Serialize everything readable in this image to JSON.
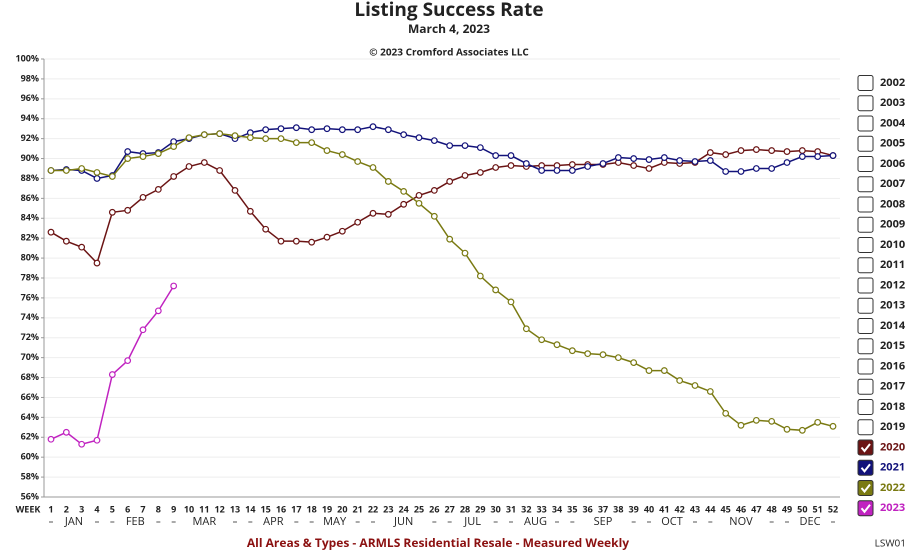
{
  "chart_data": {
    "type": "line",
    "title": "Listing Success Rate",
    "subtitle": "March 4, 2023",
    "copyright": "© 2023 Cromford Associates LLC",
    "footer": "All Areas & Types - ARMLS Residential Resale - Measured Weekly",
    "chart_code": "LSW01",
    "x_label": "WEEK",
    "categories": [
      1,
      2,
      3,
      4,
      5,
      6,
      7,
      8,
      9,
      10,
      11,
      12,
      13,
      14,
      15,
      16,
      17,
      18,
      19,
      20,
      21,
      22,
      23,
      24,
      25,
      26,
      27,
      28,
      29,
      30,
      31,
      32,
      33,
      34,
      35,
      36,
      37,
      38,
      39,
      40,
      41,
      42,
      43,
      44,
      45,
      46,
      47,
      48,
      49,
      50,
      51,
      52
    ],
    "months": [
      "JAN",
      "FEB",
      "MAR",
      "APR",
      "MAY",
      "JUN",
      "JUL",
      "AUG",
      "SEP",
      "OCT",
      "NOV",
      "DEC"
    ],
    "ylim": [
      56,
      100
    ],
    "yticks": [
      {
        "value": 56,
        "label": "56%"
      },
      {
        "value": 58,
        "label": "58%"
      },
      {
        "value": 60,
        "label": "60%"
      },
      {
        "value": 62,
        "label": "62%"
      },
      {
        "value": 64,
        "label": "64%"
      },
      {
        "value": 66,
        "label": "66%"
      },
      {
        "value": 68,
        "label": "68%"
      },
      {
        "value": 70,
        "label": "70%"
      },
      {
        "value": 72,
        "label": "72%"
      },
      {
        "value": 74,
        "label": "74%"
      },
      {
        "value": 76,
        "label": "76%"
      },
      {
        "value": 78,
        "label": "78%"
      },
      {
        "value": 80,
        "label": "80%"
      },
      {
        "value": 82,
        "label": "82%"
      },
      {
        "value": 84,
        "label": "84%"
      },
      {
        "value": 86,
        "label": "86%"
      },
      {
        "value": 88,
        "label": "88%"
      },
      {
        "value": 90,
        "label": "90%"
      },
      {
        "value": 92,
        "label": "92%"
      },
      {
        "value": 94,
        "label": "94%"
      },
      {
        "value": 96,
        "label": "96%"
      },
      {
        "value": 98,
        "label": "98%"
      },
      {
        "value": 100,
        "label": "100%"
      }
    ],
    "grid": true,
    "legend_inactive": [
      "2002",
      "2003",
      "2004",
      "2005",
      "2006",
      "2007",
      "2008",
      "2009",
      "2010",
      "2011",
      "2012",
      "2013",
      "2014",
      "2015",
      "2016",
      "2017",
      "2018",
      "2019"
    ],
    "series": [
      {
        "name": "2020",
        "color": "#6b1414",
        "values": [
          82.6,
          81.7,
          81.1,
          79.5,
          84.6,
          84.8,
          86.1,
          86.9,
          88.2,
          89.2,
          89.6,
          88.8,
          86.8,
          84.7,
          82.9,
          81.7,
          81.7,
          81.6,
          82.1,
          82.7,
          83.6,
          84.5,
          84.4,
          85.4,
          86.3,
          86.8,
          87.7,
          88.3,
          88.6,
          89.1,
          89.3,
          89.2,
          89.3,
          89.3,
          89.4,
          89.4,
          89.4,
          89.6,
          89.3,
          89.0,
          89.6,
          89.5,
          89.6,
          90.6,
          90.4,
          90.8,
          90.9,
          90.8,
          90.7,
          90.8,
          90.7,
          90.3
        ]
      },
      {
        "name": "2021",
        "color": "#12127a",
        "values": [
          88.8,
          88.9,
          88.8,
          88.0,
          88.3,
          90.7,
          90.5,
          90.6,
          91.7,
          92.0,
          92.4,
          92.5,
          92.0,
          92.6,
          92.9,
          93.0,
          93.1,
          92.9,
          93.0,
          92.9,
          92.9,
          93.2,
          92.9,
          92.4,
          92.1,
          91.8,
          91.3,
          91.3,
          91.1,
          90.3,
          90.3,
          89.5,
          88.8,
          88.8,
          88.8,
          89.2,
          89.5,
          90.1,
          90.0,
          89.9,
          90.1,
          89.8,
          89.7,
          89.8,
          88.7,
          88.7,
          89.0,
          89.0,
          89.6,
          90.2,
          90.2,
          90.3
        ]
      },
      {
        "name": "2022",
        "color": "#7a7a12",
        "values": [
          88.8,
          88.8,
          89.0,
          88.6,
          88.2,
          90.0,
          90.2,
          90.5,
          91.2,
          92.1,
          92.4,
          92.5,
          92.3,
          92.1,
          92.0,
          92.0,
          91.6,
          91.6,
          90.8,
          90.4,
          89.7,
          89.1,
          87.7,
          86.7,
          85.5,
          84.2,
          81.9,
          80.5,
          78.2,
          76.8,
          75.6,
          72.9,
          71.8,
          71.3,
          70.7,
          70.4,
          70.3,
          70.0,
          69.5,
          68.7,
          68.7,
          67.7,
          67.2,
          66.6,
          64.4,
          63.2,
          63.7,
          63.6,
          62.8,
          62.7,
          63.5,
          63.1
        ]
      },
      {
        "name": "2023",
        "color": "#c023c0",
        "values": [
          61.8,
          62.5,
          61.3,
          61.7,
          68.3,
          69.7,
          72.8,
          74.7,
          77.2,
          null,
          null,
          null,
          null,
          null,
          null,
          null,
          null,
          null,
          null,
          null,
          null,
          null,
          null,
          null,
          null,
          null,
          null,
          null,
          null,
          null,
          null,
          null,
          null,
          null,
          null,
          null,
          null,
          null,
          null,
          null,
          null,
          null,
          null,
          null,
          null,
          null,
          null,
          null,
          null,
          null,
          null,
          null
        ]
      }
    ]
  }
}
